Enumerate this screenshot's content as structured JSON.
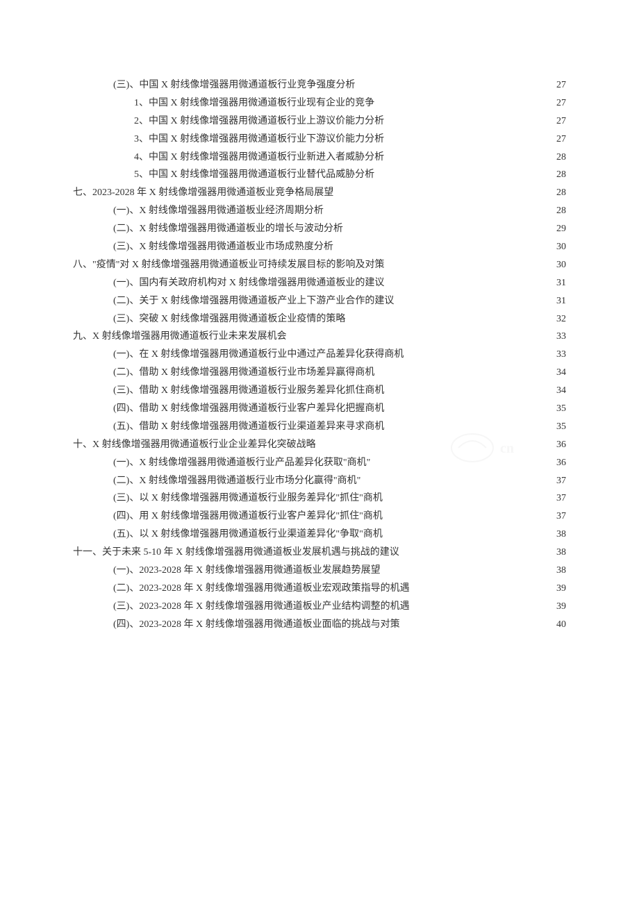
{
  "colors": {
    "text": "#333333",
    "background": "#ffffff",
    "watermark": "#cccccc"
  },
  "typography": {
    "font_family": "SimSun",
    "font_size_pt": 10.5,
    "line_height": 1.85
  },
  "toc": [
    {
      "indent": 1,
      "label": "(三)、中国 X 射线像增强器用微通道板行业竞争强度分析",
      "page": "27"
    },
    {
      "indent": 2,
      "label": "1、中国 X 射线像增强器用微通道板行业现有企业的竞争",
      "page": "27"
    },
    {
      "indent": 2,
      "label": "2、中国 X 射线像增强器用微通道板行业上游议价能力分析",
      "page": "27"
    },
    {
      "indent": 2,
      "label": "3、中国 X 射线像增强器用微通道板行业下游议价能力分析",
      "page": "27"
    },
    {
      "indent": 2,
      "label": "4、中国 X 射线像增强器用微通道板行业新进入者威胁分析",
      "page": "28"
    },
    {
      "indent": 2,
      "label": "5、中国 X 射线像增强器用微通道板行业替代品威胁分析",
      "page": "28"
    },
    {
      "indent": 0,
      "label": "七、2023-2028 年 X 射线像增强器用微通道板业竞争格局展望",
      "page": "28"
    },
    {
      "indent": 1,
      "label": "(一)、X 射线像增强器用微通道板业经济周期分析",
      "page": "28"
    },
    {
      "indent": 1,
      "label": "(二)、X 射线像增强器用微通道板业的增长与波动分析",
      "page": "29"
    },
    {
      "indent": 1,
      "label": "(三)、X 射线像增强器用微通道板业市场成熟度分析",
      "page": "30"
    },
    {
      "indent": 0,
      "label": "八、\"疫情\"对 X 射线像增强器用微通道板业可持续发展目标的影响及对策",
      "page": "30"
    },
    {
      "indent": 1,
      "label": "(一)、国内有关政府机构对 X 射线像增强器用微通道板业的建议",
      "page": "31"
    },
    {
      "indent": 1,
      "label": "(二)、关于 X 射线像增强器用微通道板产业上下游产业合作的建议",
      "page": "31"
    },
    {
      "indent": 1,
      "label": "(三)、突破 X 射线像增强器用微通道板企业疫情的策略",
      "page": "32"
    },
    {
      "indent": 0,
      "label": "九、X 射线像增强器用微通道板行业未来发展机会",
      "page": "33"
    },
    {
      "indent": 1,
      "label": "(一)、在 X 射线像增强器用微通道板行业中通过产品差异化获得商机",
      "page": "33"
    },
    {
      "indent": 1,
      "label": "(二)、借助 X 射线像增强器用微通道板行业市场差异赢得商机",
      "page": "34"
    },
    {
      "indent": 1,
      "label": "(三)、借助 X 射线像增强器用微通道板行业服务差异化抓住商机",
      "page": "34"
    },
    {
      "indent": 1,
      "label": "(四)、借助 X 射线像增强器用微通道板行业客户差异化把握商机",
      "page": "35"
    },
    {
      "indent": 1,
      "label": "(五)、借助 X 射线像增强器用微通道板行业渠道差异来寻求商机",
      "page": "35"
    },
    {
      "indent": 0,
      "label": "十、X 射线像增强器用微通道板行业企业差异化突破战略",
      "page": "36"
    },
    {
      "indent": 1,
      "label": "(一)、X 射线像增强器用微通道板行业产品差异化获取\"商机\"",
      "page": "36"
    },
    {
      "indent": 1,
      "label": "(二)、X 射线像增强器用微通道板行业市场分化赢得\"商机\"",
      "page": "37"
    },
    {
      "indent": 1,
      "label": "(三)、以 X 射线像增强器用微通道板行业服务差异化\"抓住\"商机",
      "page": "37"
    },
    {
      "indent": 1,
      "label": "(四)、用 X 射线像增强器用微通道板行业客户差异化\"抓住\"商机",
      "page": "37"
    },
    {
      "indent": 1,
      "label": "(五)、以 X 射线像增强器用微通道板行业渠道差异化\"争取\"商机",
      "page": "38"
    },
    {
      "indent": 0,
      "label": "十一、关于未来 5-10 年 X 射线像增强器用微通道板业发展机遇与挑战的建议",
      "page": "38"
    },
    {
      "indent": 1,
      "label": "(一)、2023-2028 年 X 射线像增强器用微通道板业发展趋势展望",
      "page": "38"
    },
    {
      "indent": 1,
      "label": "(二)、2023-2028 年 X 射线像增强器用微通道板业宏观政策指导的机遇",
      "page": "39"
    },
    {
      "indent": 1,
      "label": "(三)、2023-2028 年 X 射线像增强器用微通道板业产业结构调整的机遇",
      "page": "39"
    },
    {
      "indent": 1,
      "label": "(四)、2023-2028 年 X 射线像增强器用微通道板业面临的挑战与对策",
      "page": "40"
    }
  ]
}
